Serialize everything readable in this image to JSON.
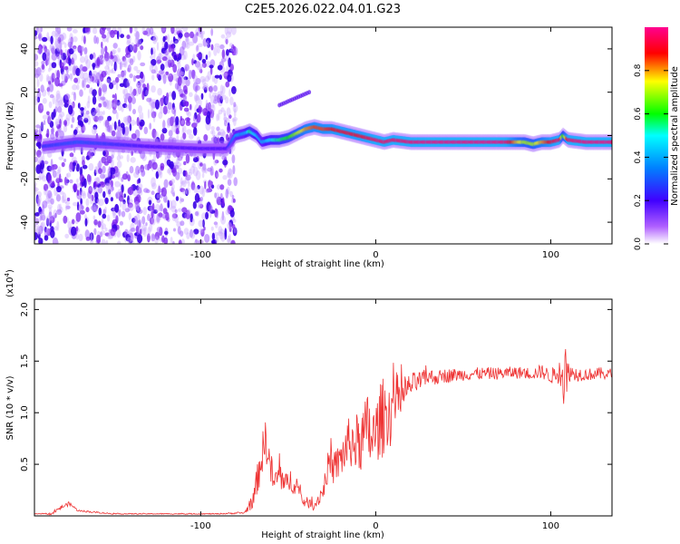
{
  "title": "C2E5.2026.022.04.01.G23",
  "chart_data": [
    {
      "type": "heatmap",
      "title": "C2E5.2026.022.04.01.G23",
      "xlabel": "Height of straight line (km)",
      "ylabel": "Frequency (Hz)",
      "xlim": [
        -195,
        135
      ],
      "ylim": [
        -50,
        50
      ],
      "xticks": [
        -100,
        0,
        100
      ],
      "yticks": [
        -40,
        -20,
        0,
        20,
        40
      ],
      "colorbar": {
        "label": "Normalized spectral amplitude",
        "range": [
          0.0,
          1.0
        ],
        "ticks": [
          "0.0",
          "0.2",
          "0.4",
          "0.6",
          "0.8"
        ],
        "colors": [
          "#ffffff",
          "#8000ff",
          "#0000ff",
          "#00ffff",
          "#00ff00",
          "#ffff00",
          "#ff0000",
          "#ff00ff"
        ]
      },
      "noise_region_x": [
        -195,
        -80
      ],
      "signal_trace": {
        "x": [
          -190,
          -170,
          -130,
          -100,
          -85,
          -80,
          -75,
          -72,
          -68,
          -65,
          -60,
          -55,
          -50,
          -45,
          -40,
          -35,
          -30,
          -25,
          -20,
          -15,
          -10,
          -5,
          0,
          5,
          10,
          20,
          30,
          40,
          50,
          60,
          70,
          75,
          80,
          85,
          90,
          95,
          100,
          105,
          107,
          110,
          120,
          135
        ],
        "freq": [
          -5,
          -3,
          -5,
          -6,
          -6,
          0,
          1,
          2,
          0,
          -3,
          -2,
          -2,
          -1,
          1,
          3,
          4,
          3,
          3,
          2,
          1,
          0,
          -1,
          -2,
          -3,
          -2,
          -3,
          -3,
          -3,
          -3,
          -3,
          -3,
          -3,
          -3,
          -3,
          -4,
          -3,
          -3,
          -2,
          0,
          -2,
          -3,
          -3
        ],
        "amplitude": [
          0.25,
          0.3,
          0.2,
          0.2,
          0.2,
          0.4,
          0.4,
          0.55,
          0.45,
          0.4,
          0.5,
          0.55,
          0.6,
          0.7,
          0.8,
          0.85,
          0.85,
          0.88,
          0.9,
          0.9,
          0.9,
          0.92,
          0.95,
          0.95,
          0.95,
          0.96,
          0.97,
          0.97,
          0.97,
          0.97,
          0.97,
          0.95,
          0.8,
          0.7,
          0.7,
          0.8,
          0.9,
          0.95,
          0.6,
          0.95,
          0.97,
          0.97
        ]
      },
      "side_feature": {
        "x": [
          -55,
          -38
        ],
        "freq": [
          14,
          20
        ]
      }
    },
    {
      "type": "line",
      "xlabel": "Height of straight line (km)",
      "ylabel": "SNR (10 * v/v)",
      "multiplier": "(x10",
      "multiplier_exp": "4",
      "multiplier_close": ")",
      "xlim": [
        -195,
        135
      ],
      "ylim": [
        0.0,
        2.1
      ],
      "xticks": [
        -100,
        0,
        100
      ],
      "yticks": [
        "0.5",
        "1.0",
        "1.5",
        "2.0"
      ],
      "color": "#ee3333",
      "series": [
        {
          "name": "SNR",
          "x": [
            -195,
            -185,
            -180,
            -175,
            -170,
            -150,
            -120,
            -90,
            -75,
            -70,
            -66,
            -63,
            -61,
            -58,
            -55,
            -52,
            -49,
            -45,
            -42,
            -38,
            -35,
            -30,
            -27,
            -24,
            -20,
            -15,
            -10,
            -6,
            -4,
            -2,
            0,
            2,
            4,
            6,
            8,
            10,
            12,
            15,
            20,
            25,
            30,
            35,
            40,
            50,
            60,
            70,
            80,
            90,
            95,
            100,
            104,
            106,
            107,
            108,
            109,
            110,
            112,
            120,
            130,
            135
          ],
          "y": [
            0.02,
            0.02,
            0.08,
            0.12,
            0.05,
            0.02,
            0.02,
            0.02,
            0.03,
            0.15,
            0.5,
            0.75,
            0.55,
            0.3,
            0.42,
            0.28,
            0.35,
            0.3,
            0.15,
            0.12,
            0.1,
            0.25,
            0.5,
            0.45,
            0.55,
            0.72,
            0.7,
            0.78,
            0.85,
            0.72,
            0.8,
            0.9,
            0.95,
            1.0,
            0.98,
            1.1,
            1.15,
            1.15,
            1.27,
            1.3,
            1.35,
            1.34,
            1.36,
            1.37,
            1.38,
            1.38,
            1.39,
            1.38,
            1.4,
            1.35,
            1.38,
            1.5,
            1.25,
            1.6,
            1.2,
            1.42,
            1.38,
            1.37,
            1.38,
            1.37
          ],
          "noise": [
            0.0,
            0.01,
            0.02,
            0.02,
            0.01,
            0.005,
            0.005,
            0.005,
            0.01,
            0.08,
            0.2,
            0.2,
            0.18,
            0.15,
            0.15,
            0.12,
            0.12,
            0.1,
            0.06,
            0.05,
            0.05,
            0.1,
            0.15,
            0.15,
            0.2,
            0.25,
            0.3,
            0.35,
            0.4,
            0.35,
            0.3,
            0.35,
            0.4,
            0.3,
            0.35,
            0.3,
            0.25,
            0.15,
            0.12,
            0.1,
            0.08,
            0.07,
            0.07,
            0.06,
            0.06,
            0.06,
            0.06,
            0.06,
            0.07,
            0.07,
            0.1,
            0.25,
            0.3,
            0.45,
            0.3,
            0.12,
            0.08,
            0.06,
            0.06,
            0.06
          ]
        }
      ]
    }
  ]
}
